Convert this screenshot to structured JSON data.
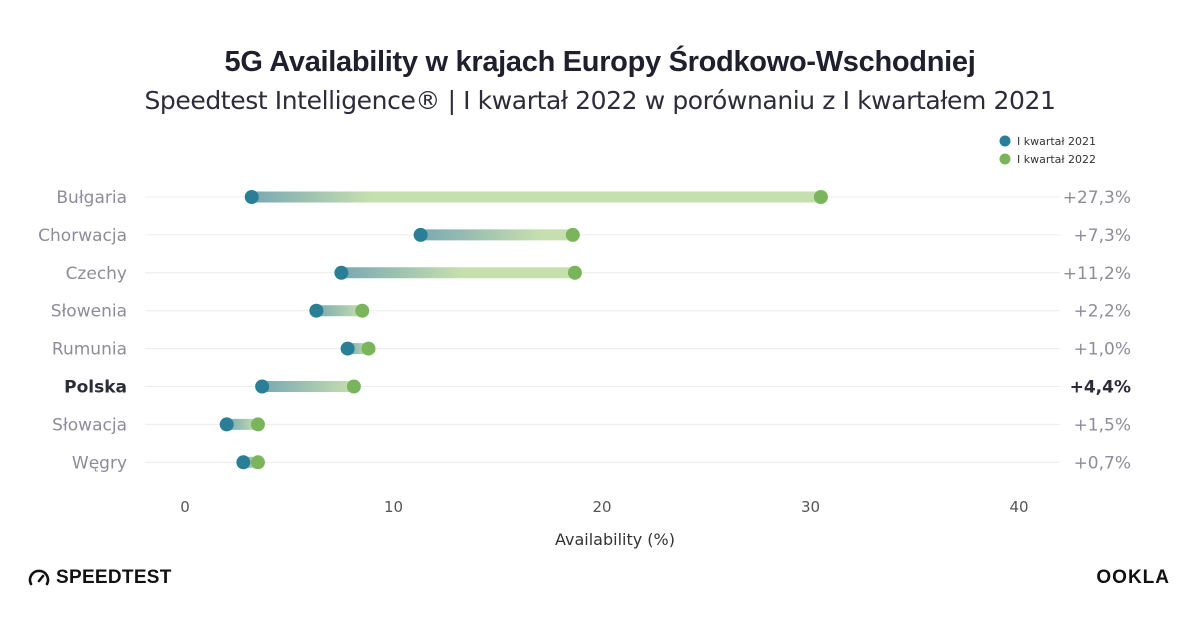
{
  "header": {
    "title": "5G Availability w krajach Europy Środkowo-Wschodniej",
    "subtitle": "Speedtest Intelligence® | I kwartał 2022 w porównaniu z I kwartałem 2021"
  },
  "branding": {
    "left_logo": "SPEEDTEST",
    "right_logo": "OOKLA"
  },
  "chart_data": {
    "type": "dumbbell",
    "xlabel": "Availability (%)",
    "xlim": [
      0,
      40
    ],
    "xticks": [
      0,
      10,
      20,
      30,
      40
    ],
    "categories": [
      "Bułgaria",
      "Chorwacja",
      "Czechy",
      "Słowenia",
      "Rumunia",
      "Polska",
      "Słowacja",
      "Węgry"
    ],
    "highlight": "Polska",
    "series": [
      {
        "name": "I kwartał 2021",
        "color": "#2a7f97",
        "values": [
          3.2,
          11.3,
          7.5,
          6.3,
          7.8,
          3.7,
          2.0,
          2.8
        ]
      },
      {
        "name": "I kwartał 2022",
        "color": "#7ab55c",
        "values": [
          30.5,
          18.6,
          18.7,
          8.5,
          8.8,
          8.1,
          3.5,
          3.5
        ]
      }
    ],
    "change_labels": [
      "+27,3%",
      "+7,3%",
      "+11,2%",
      "+2,2%",
      "+1,0%",
      "+4,4%",
      "+1,5%",
      "+0,7%"
    ],
    "legend_position": "top-right",
    "grid": true
  }
}
